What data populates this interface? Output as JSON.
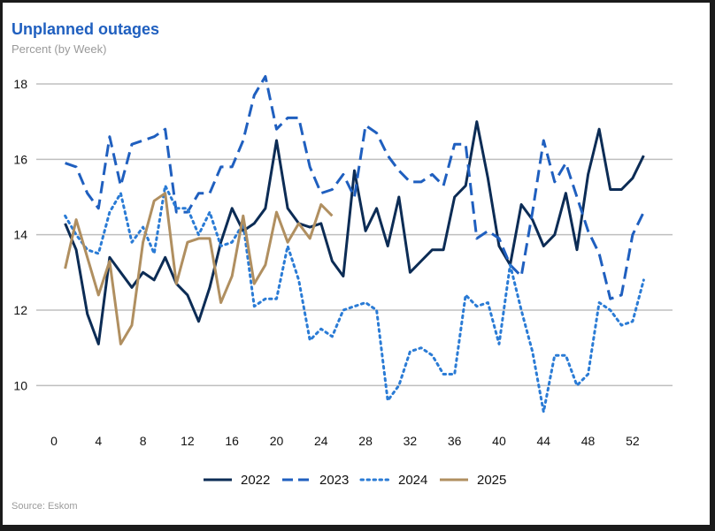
{
  "chart_data": {
    "type": "line",
    "title": "Unplanned outages",
    "subtitle": "Percent (by Week)",
    "source": "Source: Eskom",
    "xlabel": "",
    "ylabel": "",
    "xlim": [
      0,
      54
    ],
    "ylim": [
      9,
      18
    ],
    "x_ticks": [
      0,
      4,
      8,
      12,
      16,
      20,
      24,
      28,
      32,
      36,
      40,
      44,
      48,
      52
    ],
    "y_ticks": [
      10,
      12,
      14,
      16,
      18
    ],
    "grid": "horizontal",
    "legend_position": "bottom",
    "series": [
      {
        "name": "2022",
        "color": "#0c2c55",
        "style": "solid",
        "x": [
          1,
          2,
          3,
          4,
          5,
          6,
          7,
          8,
          9,
          10,
          11,
          12,
          13,
          14,
          15,
          16,
          17,
          18,
          19,
          20,
          21,
          22,
          23,
          24,
          25,
          26,
          27,
          28,
          29,
          30,
          31,
          32,
          33,
          34,
          35,
          36,
          37,
          38,
          39,
          40,
          41,
          42,
          43,
          44,
          45,
          46,
          47,
          48,
          49,
          50,
          51,
          52,
          53
        ],
        "values": [
          14.3,
          13.6,
          11.9,
          11.1,
          13.4,
          13.0,
          12.6,
          13.0,
          12.8,
          13.4,
          12.7,
          12.4,
          11.7,
          12.6,
          13.8,
          14.7,
          14.1,
          14.3,
          14.7,
          16.5,
          14.7,
          14.3,
          14.2,
          14.3,
          13.3,
          12.9,
          15.7,
          14.1,
          14.7,
          13.7,
          15.0,
          13.0,
          13.3,
          13.6,
          13.6,
          15.0,
          15.3,
          17.0,
          15.5,
          13.7,
          13.2,
          14.8,
          14.4,
          13.7,
          14.0,
          15.1,
          13.6,
          15.6,
          16.8,
          15.2,
          15.2,
          15.5,
          16.1
        ]
      },
      {
        "name": "2023",
        "color": "#1f5fbf",
        "style": "dashed",
        "x": [
          1,
          2,
          3,
          4,
          5,
          6,
          7,
          8,
          9,
          10,
          11,
          12,
          13,
          14,
          15,
          16,
          17,
          18,
          19,
          20,
          21,
          22,
          23,
          24,
          25,
          26,
          27,
          28,
          29,
          30,
          31,
          32,
          33,
          34,
          35,
          36,
          37,
          38,
          39,
          40,
          41,
          42,
          43,
          44,
          45,
          46,
          47,
          48,
          49,
          50,
          51,
          52,
          53
        ],
        "values": [
          15.9,
          15.8,
          15.1,
          14.7,
          16.6,
          15.3,
          16.4,
          16.5,
          16.6,
          16.8,
          14.6,
          14.6,
          15.1,
          15.1,
          15.8,
          15.8,
          16.5,
          17.7,
          18.2,
          16.8,
          17.1,
          17.1,
          15.8,
          15.1,
          15.2,
          15.6,
          15.0,
          16.9,
          16.7,
          16.1,
          15.7,
          15.4,
          15.4,
          15.6,
          15.3,
          16.4,
          16.4,
          13.9,
          14.1,
          13.9,
          13.2,
          12.9,
          14.6,
          16.5,
          15.4,
          15.9,
          15.0,
          14.1,
          13.5,
          12.3,
          12.4,
          14.0,
          14.6
        ]
      },
      {
        "name": "2024",
        "color": "#2a7bd5",
        "style": "dotted",
        "x": [
          1,
          2,
          3,
          4,
          5,
          6,
          7,
          8,
          9,
          10,
          11,
          12,
          13,
          14,
          15,
          16,
          17,
          18,
          19,
          20,
          21,
          22,
          23,
          24,
          25,
          26,
          27,
          28,
          29,
          30,
          31,
          32,
          33,
          34,
          35,
          36,
          37,
          38,
          39,
          40,
          41,
          42,
          43,
          44,
          45,
          46,
          47,
          48,
          49,
          50,
          51,
          52,
          53
        ],
        "values": [
          14.5,
          14.0,
          13.6,
          13.5,
          14.6,
          15.1,
          13.8,
          14.2,
          13.5,
          15.3,
          14.7,
          14.7,
          14.0,
          14.6,
          13.7,
          13.8,
          14.3,
          12.1,
          12.3,
          12.3,
          13.7,
          12.8,
          11.2,
          11.5,
          11.3,
          12.0,
          12.1,
          12.2,
          12.0,
          9.6,
          10.0,
          10.9,
          11.0,
          10.8,
          10.3,
          10.3,
          12.4,
          12.1,
          12.2,
          11.1,
          13.2,
          12.0,
          10.9,
          9.3,
          10.8,
          10.8,
          10.0,
          10.3,
          12.2,
          12.0,
          11.6,
          11.7,
          12.8
        ]
      },
      {
        "name": "2025",
        "color": "#b08f60",
        "style": "solid",
        "x": [
          1,
          2,
          3,
          4,
          5,
          6,
          7,
          8,
          9,
          10,
          11,
          12,
          13,
          14,
          15,
          16,
          17,
          18,
          19,
          20,
          21,
          22,
          23,
          24,
          25
        ],
        "values": [
          13.1,
          14.4,
          13.4,
          12.4,
          13.3,
          11.1,
          11.6,
          13.8,
          14.9,
          15.1,
          12.7,
          13.8,
          13.9,
          13.9,
          12.2,
          12.9,
          14.5,
          12.7,
          13.2,
          14.6,
          13.8,
          14.3,
          13.9,
          14.8,
          14.5
        ]
      }
    ]
  }
}
